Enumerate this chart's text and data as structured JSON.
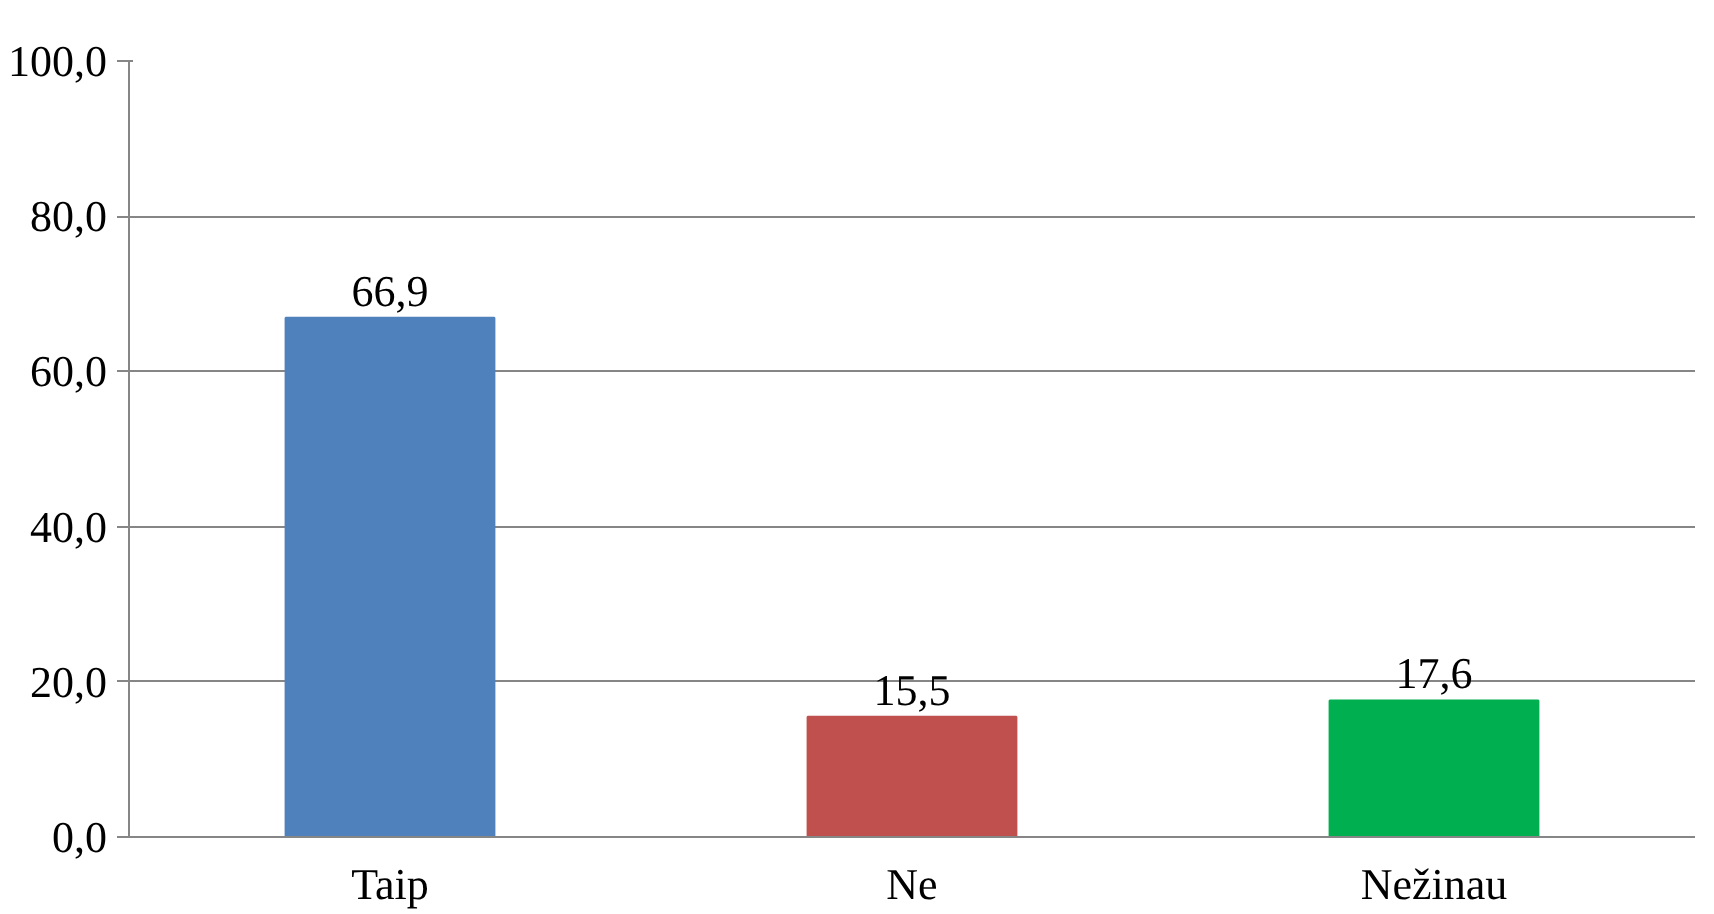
{
  "chart_data": {
    "type": "bar",
    "categories": [
      "Taip",
      "Ne",
      "Nežinau"
    ],
    "values": [
      66.9,
      15.5,
      17.6
    ],
    "colors": [
      "#4f81bd",
      "#c0504d",
      "#00b050"
    ],
    "value_labels": [
      "66,9",
      "15,5",
      "17,6"
    ],
    "ylim": [
      0,
      100
    ],
    "yticks": [
      {
        "value": 0,
        "label": "0,0"
      },
      {
        "value": 20,
        "label": "20,0"
      },
      {
        "value": 40,
        "label": "40,0"
      },
      {
        "value": 60,
        "label": "60,0"
      },
      {
        "value": 80,
        "label": "80,0"
      },
      {
        "value": 100,
        "label": "100,0"
      }
    ],
    "grid": "y"
  }
}
